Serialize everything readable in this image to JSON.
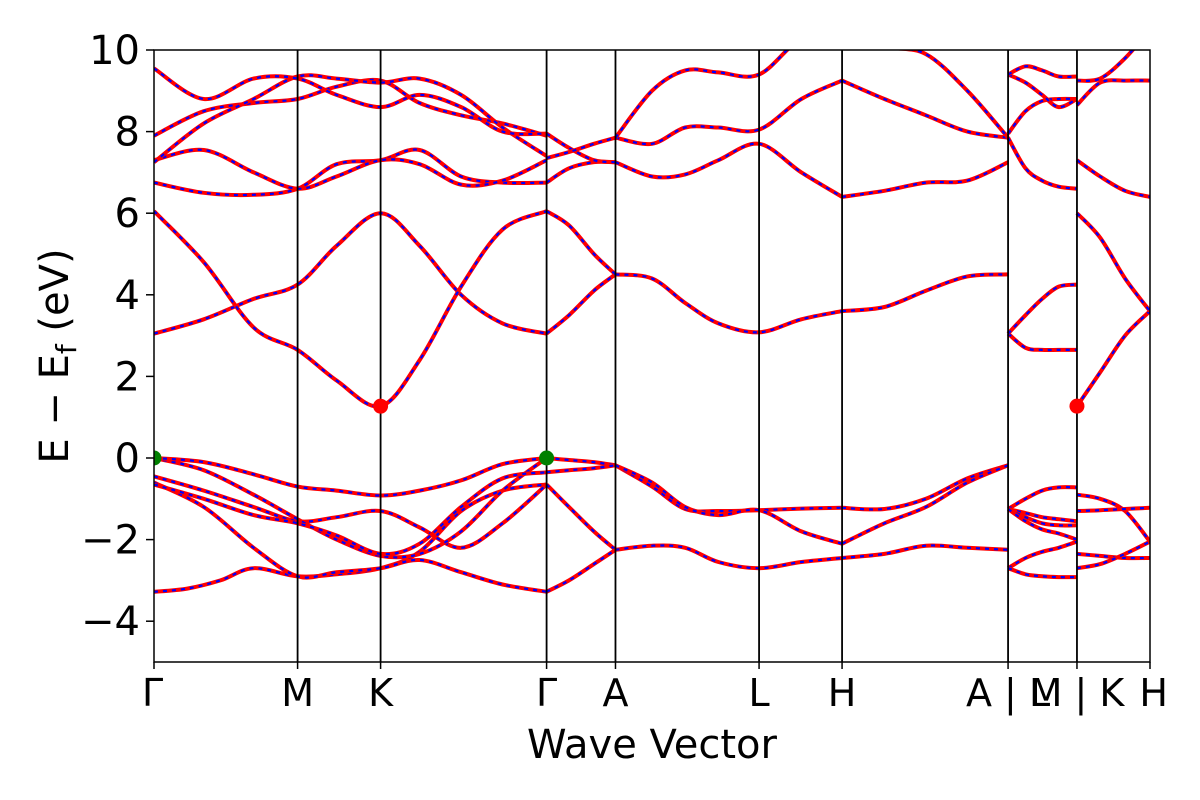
{
  "chart_data": {
    "type": "line",
    "xlabel": "Wave Vector",
    "ylabel_main": "E − E",
    "ylabel_sub": "f",
    "ylabel_unit": " (eV)",
    "ylim": [
      -5,
      10
    ],
    "yticks": [
      -4,
      -2,
      0,
      2,
      4,
      6,
      8,
      10
    ],
    "ytick_labels": [
      "−4",
      "−2",
      "0",
      "2",
      "4",
      "6",
      "8",
      "10"
    ],
    "xlim": [
      0,
      6.0
    ],
    "kpoints": [
      {
        "label": "Γ",
        "x": 0.0
      },
      {
        "label": "M",
        "x": 0.865
      },
      {
        "label": "K",
        "x": 1.365
      },
      {
        "label": "Γ",
        "x": 2.365
      },
      {
        "label": "A",
        "x": 2.78
      },
      {
        "label": "L",
        "x": 3.645
      },
      {
        "label": "H",
        "x": 4.145
      },
      {
        "label": "A | L",
        "x": 5.145
      },
      {
        "label": "M | K",
        "x": 5.56
      },
      {
        "label": "H",
        "x": 6.0
      }
    ],
    "colors": {
      "bands_solid": "#ff0000",
      "bands_dashed": "#0000ff",
      "vbm": "#008000",
      "cbm": "#ff0000",
      "frame": "#000000"
    },
    "markers": [
      {
        "name": "VBM",
        "x": 0.0,
        "y": 0.0,
        "color": "#008000"
      },
      {
        "name": "VBM",
        "x": 2.365,
        "y": 0.0,
        "color": "#008000"
      },
      {
        "name": "CBM",
        "x": 1.365,
        "y": 1.27,
        "color": "#ff0000"
      },
      {
        "name": "CBM",
        "x": 5.56,
        "y": 1.27,
        "color": "#ff0000"
      }
    ],
    "series": [
      {
        "x": [
          0,
          0.2,
          0.4,
          0.6,
          0.865,
          1.1,
          1.365,
          1.6,
          1.85,
          2.1,
          2.365
        ],
        "y": [
          -3.28,
          -3.2,
          -3.0,
          -2.7,
          -2.9,
          -2.85,
          -2.7,
          -2.3,
          -1.3,
          -0.8,
          -0.65
        ]
      },
      {
        "x": [
          0,
          0.3,
          0.6,
          0.865,
          1.1,
          1.365,
          1.6,
          1.85,
          2.1,
          2.365
        ],
        "y": [
          -0.6,
          -1.2,
          -2.2,
          -2.9,
          -2.8,
          -2.7,
          -2.5,
          -2.8,
          -3.1,
          -3.28
        ]
      },
      {
        "x": [
          0,
          0.3,
          0.6,
          0.865,
          1.1,
          1.365,
          1.6,
          1.85,
          2.1,
          2.365
        ],
        "y": [
          -0.45,
          -0.8,
          -1.2,
          -1.55,
          -1.45,
          -1.3,
          -1.7,
          -2.2,
          -1.6,
          -0.65
        ]
      },
      {
        "x": [
          0,
          0.3,
          0.6,
          0.865,
          1.1,
          1.365,
          1.6,
          1.85,
          2.1,
          2.365
        ],
        "y": [
          0,
          -0.3,
          -0.9,
          -1.5,
          -2.0,
          -2.4,
          -2.35,
          -1.8,
          -0.8,
          0
        ]
      },
      {
        "x": [
          0,
          0.3,
          0.6,
          0.865,
          1.1,
          1.365,
          1.6,
          1.85,
          2.1,
          2.365
        ],
        "y": [
          0,
          -0.1,
          -0.4,
          -0.7,
          -0.8,
          -0.92,
          -0.8,
          -0.55,
          -0.15,
          0
        ]
      },
      {
        "x": [
          0,
          0.3,
          0.6,
          0.865,
          1.1,
          1.365,
          1.6,
          1.85,
          2.1,
          2.365
        ],
        "y": [
          -0.65,
          -1.0,
          -1.4,
          -1.6,
          -1.9,
          -2.35,
          -2.1,
          -1.2,
          -0.5,
          -0.35
        ]
      },
      {
        "x": [
          0,
          0.3,
          0.6,
          0.865,
          1.1,
          1.365,
          1.6,
          1.85,
          2.1,
          2.365
        ],
        "y": [
          3.05,
          3.4,
          3.9,
          4.25,
          5.2,
          6.0,
          5.2,
          4.0,
          3.3,
          3.05
        ]
      },
      {
        "x": [
          0,
          0.3,
          0.6,
          0.865,
          1.1,
          1.365,
          1.6,
          1.85,
          2.1,
          2.365
        ],
        "y": [
          6.05,
          4.8,
          3.2,
          2.65,
          1.9,
          1.27,
          2.4,
          4.2,
          5.6,
          6.05
        ]
      },
      {
        "x": [
          0,
          0.3,
          0.6,
          0.865,
          1.1,
          1.365,
          1.6,
          1.85,
          2.1,
          2.365
        ],
        "y": [
          6.75,
          6.5,
          6.45,
          6.6,
          7.2,
          7.3,
          7.55,
          6.9,
          6.75,
          6.75
        ]
      },
      {
        "x": [
          0,
          0.3,
          0.6,
          0.865,
          1.1,
          1.365,
          1.6,
          1.85,
          2.1,
          2.365
        ],
        "y": [
          7.3,
          7.55,
          7.0,
          6.6,
          6.9,
          7.3,
          7.2,
          6.7,
          6.8,
          7.3
        ]
      },
      {
        "x": [
          0,
          0.3,
          0.6,
          0.865,
          1.1,
          1.365,
          1.6,
          1.85,
          2.1,
          2.365
        ],
        "y": [
          7.9,
          8.5,
          8.7,
          8.8,
          9.1,
          9.25,
          8.7,
          8.4,
          8.2,
          7.9
        ]
      },
      {
        "x": [
          0,
          0.3,
          0.6,
          0.865,
          1.1,
          1.365,
          1.6,
          1.85,
          2.1,
          2.365
        ],
        "y": [
          7.25,
          8.2,
          8.8,
          9.35,
          9.3,
          9.2,
          9.3,
          8.9,
          8.1,
          7.4
        ]
      },
      {
        "x": [
          0,
          0.3,
          0.6,
          0.865,
          1.1,
          1.365,
          1.6,
          1.85,
          2.1,
          2.365
        ],
        "y": [
          9.55,
          8.8,
          9.3,
          9.3,
          8.9,
          8.6,
          8.9,
          8.6,
          8.0,
          7.95
        ]
      },
      {
        "x": [
          2.365,
          2.5,
          2.65,
          2.78
        ],
        "y": [
          0,
          -0.05,
          -0.1,
          -0.18
        ]
      },
      {
        "x": [
          2.365,
          2.5,
          2.65,
          2.78
        ],
        "y": [
          -0.35,
          -0.3,
          -0.25,
          -0.18
        ]
      },
      {
        "x": [
          2.365,
          2.5,
          2.65,
          2.78
        ],
        "y": [
          -0.65,
          -1.2,
          -1.8,
          -2.25
        ]
      },
      {
        "x": [
          2.365,
          2.5,
          2.65,
          2.78
        ],
        "y": [
          -3.28,
          -3.0,
          -2.6,
          -2.25
        ]
      },
      {
        "x": [
          2.365,
          2.5,
          2.65,
          2.78
        ],
        "y": [
          3.05,
          3.5,
          4.1,
          4.5
        ]
      },
      {
        "x": [
          2.365,
          2.5,
          2.65,
          2.78
        ],
        "y": [
          6.05,
          5.7,
          5.0,
          4.5
        ]
      },
      {
        "x": [
          2.365,
          2.5,
          2.65,
          2.78
        ],
        "y": [
          6.75,
          7.1,
          7.25,
          7.25
        ]
      },
      {
        "x": [
          2.365,
          2.5,
          2.65,
          2.78
        ],
        "y": [
          7.95,
          7.6,
          7.3,
          7.25
        ]
      },
      {
        "x": [
          2.365,
          2.5,
          2.65,
          2.78
        ],
        "y": [
          7.35,
          7.5,
          7.7,
          7.85
        ]
      },
      {
        "x": [
          2.78,
          3.0,
          3.2,
          3.4,
          3.645,
          3.9,
          4.145
        ],
        "y": [
          -0.18,
          -0.7,
          -1.25,
          -1.3,
          -1.28,
          -1.24,
          -1.22
        ]
      },
      {
        "x": [
          2.78,
          3.0,
          3.2,
          3.4,
          3.645,
          3.9,
          4.145
        ],
        "y": [
          -0.18,
          -0.6,
          -1.2,
          -1.4,
          -1.28,
          -1.8,
          -2.1
        ]
      },
      {
        "x": [
          2.78,
          3.0,
          3.2,
          3.4,
          3.645,
          3.9,
          4.145
        ],
        "y": [
          -2.25,
          -2.15,
          -2.2,
          -2.55,
          -2.7,
          -2.55,
          -2.45
        ]
      },
      {
        "x": [
          2.78,
          3.0,
          3.2,
          3.4,
          3.645,
          3.9,
          4.145
        ],
        "y": [
          4.5,
          4.4,
          3.8,
          3.3,
          3.08,
          3.4,
          3.6
        ]
      },
      {
        "x": [
          2.78,
          3.0,
          3.2,
          3.4,
          3.645,
          3.9,
          4.145
        ],
        "y": [
          7.25,
          6.9,
          6.95,
          7.3,
          7.7,
          7.0,
          6.4
        ]
      },
      {
        "x": [
          2.78,
          3.0,
          3.2,
          3.4,
          3.645,
          3.9,
          4.145
        ],
        "y": [
          7.85,
          7.7,
          8.1,
          8.1,
          8.05,
          8.8,
          9.25
        ]
      },
      {
        "x": [
          2.78,
          3.0,
          3.2,
          3.4,
          3.645,
          3.9,
          4.145
        ],
        "y": [
          7.85,
          9.0,
          9.5,
          9.45,
          9.4,
          10.3,
          10.6
        ]
      },
      {
        "x": [
          4.145,
          4.4,
          4.65,
          4.9,
          5.145
        ],
        "y": [
          -1.22,
          -1.25,
          -1.0,
          -0.5,
          -0.18
        ]
      },
      {
        "x": [
          4.145,
          4.4,
          4.65,
          4.9,
          5.145
        ],
        "y": [
          -2.1,
          -1.6,
          -1.2,
          -0.6,
          -0.18
        ]
      },
      {
        "x": [
          4.145,
          4.4,
          4.65,
          4.9,
          5.145
        ],
        "y": [
          -2.45,
          -2.35,
          -2.15,
          -2.2,
          -2.25
        ]
      },
      {
        "x": [
          4.145,
          4.4,
          4.65,
          4.9,
          5.145
        ],
        "y": [
          3.6,
          3.7,
          4.1,
          4.45,
          4.5
        ]
      },
      {
        "x": [
          4.145,
          4.4,
          4.65,
          4.9,
          5.145
        ],
        "y": [
          6.4,
          6.55,
          6.75,
          6.8,
          7.25
        ]
      },
      {
        "x": [
          4.145,
          4.4,
          4.65,
          4.9,
          5.145
        ],
        "y": [
          9.25,
          8.8,
          8.4,
          8.0,
          7.85
        ]
      },
      {
        "x": [
          4.145,
          4.4,
          4.65,
          4.9,
          5.145
        ],
        "y": [
          10.6,
          10.1,
          9.9,
          9.0,
          7.85
        ]
      },
      {
        "x": [
          5.145,
          5.25,
          5.35,
          5.45,
          5.56
        ],
        "y": [
          3.05,
          2.7,
          2.65,
          2.65,
          2.65
        ]
      },
      {
        "x": [
          5.145,
          5.25,
          5.35,
          5.45,
          5.56
        ],
        "y": [
          3.05,
          3.5,
          3.9,
          4.2,
          4.25
        ]
      },
      {
        "x": [
          5.145,
          5.25,
          5.35,
          5.45,
          5.56
        ],
        "y": [
          -1.25,
          -1.0,
          -0.8,
          -0.72,
          -0.72
        ]
      },
      {
        "x": [
          5.145,
          5.25,
          5.35,
          5.45,
          5.56
        ],
        "y": [
          -1.25,
          -1.35,
          -1.45,
          -1.5,
          -1.55
        ]
      },
      {
        "x": [
          5.145,
          5.25,
          5.35,
          5.45,
          5.56
        ],
        "y": [
          -1.25,
          -1.45,
          -1.6,
          -1.65,
          -1.65
        ]
      },
      {
        "x": [
          5.145,
          5.25,
          5.35,
          5.45,
          5.56
        ],
        "y": [
          -1.25,
          -1.55,
          -1.75,
          -1.85,
          -2.0
        ]
      },
      {
        "x": [
          5.145,
          5.25,
          5.35,
          5.45,
          5.56
        ],
        "y": [
          -2.7,
          -2.45,
          -2.3,
          -2.2,
          -2.05
        ]
      },
      {
        "x": [
          5.145,
          5.25,
          5.35,
          5.45,
          5.56
        ],
        "y": [
          -2.7,
          -2.85,
          -2.9,
          -2.92,
          -2.92
        ]
      },
      {
        "x": [
          5.145,
          5.25,
          5.35,
          5.45,
          5.56
        ],
        "y": [
          7.85,
          7.1,
          6.8,
          6.65,
          6.6
        ]
      },
      {
        "x": [
          5.145,
          5.25,
          5.35,
          5.45,
          5.56
        ],
        "y": [
          7.95,
          8.5,
          8.75,
          8.8,
          8.8
        ]
      },
      {
        "x": [
          5.145,
          5.25,
          5.35,
          5.45,
          5.56
        ],
        "y": [
          9.4,
          9.2,
          8.9,
          8.6,
          8.8
        ]
      },
      {
        "x": [
          5.145,
          5.25,
          5.35,
          5.45,
          5.56
        ],
        "y": [
          9.4,
          9.6,
          9.5,
          9.35,
          9.35
        ]
      },
      {
        "x": [
          5.56,
          5.7,
          5.85,
          6.0
        ],
        "y": [
          1.27,
          2.1,
          3.0,
          3.6
        ]
      },
      {
        "x": [
          5.56,
          5.7,
          5.85,
          6.0
        ],
        "y": [
          6.0,
          5.4,
          4.4,
          3.6
        ]
      },
      {
        "x": [
          5.56,
          5.7,
          5.85,
          6.0
        ],
        "y": [
          -0.9,
          -1.0,
          -1.3,
          -2.05
        ]
      },
      {
        "x": [
          5.56,
          5.7,
          5.85,
          6.0
        ],
        "y": [
          -1.3,
          -1.28,
          -1.25,
          -1.22
        ]
      },
      {
        "x": [
          5.56,
          5.7,
          5.85,
          6.0
        ],
        "y": [
          -2.35,
          -2.4,
          -2.45,
          -2.45
        ]
      },
      {
        "x": [
          5.56,
          5.7,
          5.85,
          6.0
        ],
        "y": [
          -2.7,
          -2.6,
          -2.35,
          -2.05
        ]
      },
      {
        "x": [
          5.56,
          5.7,
          5.85,
          6.0
        ],
        "y": [
          7.3,
          6.9,
          6.55,
          6.4
        ]
      },
      {
        "x": [
          5.56,
          5.7,
          5.85,
          6.0
        ],
        "y": [
          8.65,
          9.2,
          9.25,
          9.25
        ]
      },
      {
        "x": [
          5.56,
          5.7,
          5.85,
          6.0
        ],
        "y": [
          9.25,
          9.3,
          9.8,
          10.5
        ]
      }
    ]
  }
}
